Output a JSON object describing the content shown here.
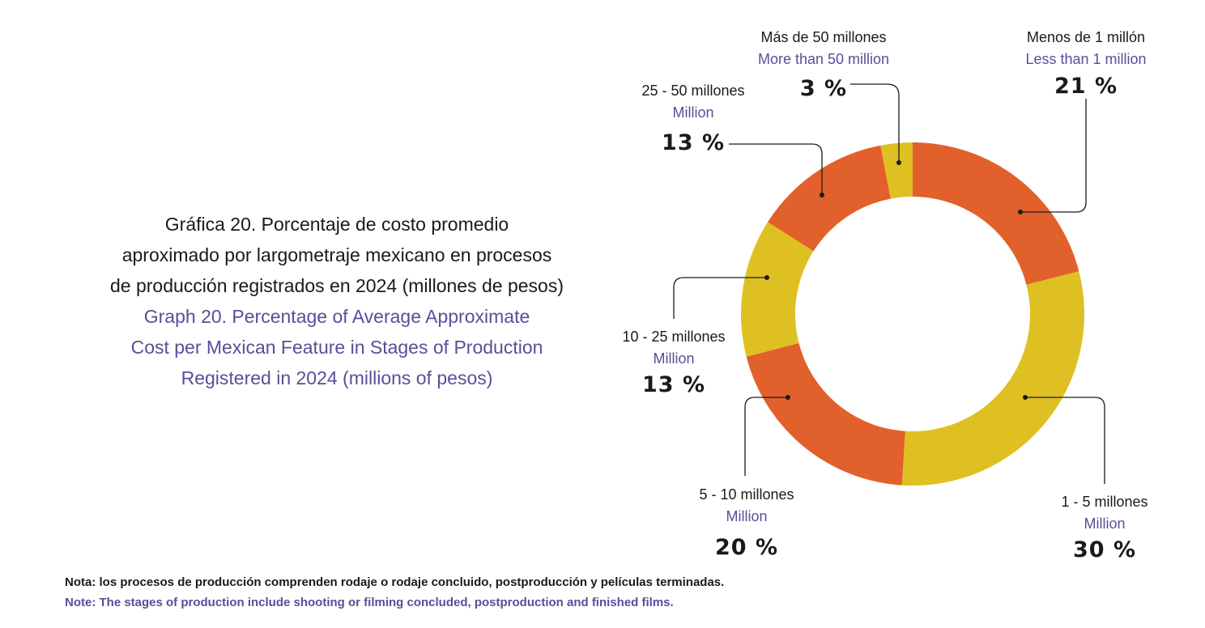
{
  "title": {
    "es_line1": "Gráfica 20. Porcentaje de costo promedio",
    "es_line2": "aproximado por largometraje mexicano en procesos",
    "es_line3": "de producción registrados en 2024 (millones de pesos)",
    "en_line1": "Graph 20. Percentage of Average Approximate",
    "en_line2": "Cost per Mexican Feature in Stages of Production",
    "en_line3": "Registered in 2024 (millions of pesos)"
  },
  "notes": {
    "es": "Nota: los procesos de producción comprenden rodaje o rodaje concluido, postproducción y películas terminadas.",
    "en": "Note: The stages of production include shooting or filming concluded, postproduction and finished films."
  },
  "colors": {
    "orange": "#e2602b",
    "yellow": "#dfc023",
    "dark": "#1a1a1a",
    "purple": "#55509a"
  },
  "chart_data": {
    "type": "pie",
    "donut": true,
    "start": "top, clockwise",
    "segments": [
      {
        "label_es": "Menos de 1 millón",
        "label_en": "Less than 1 million",
        "value": 21,
        "pct_label": "21 %",
        "color": "#e2602b"
      },
      {
        "label_es": "1 - 5 millones",
        "label_en": "Million",
        "value": 30,
        "pct_label": "30 %",
        "color": "#dfc023"
      },
      {
        "label_es": "5 - 10 millones",
        "label_en": "Million",
        "value": 20,
        "pct_label": "20 %",
        "color": "#e2602b"
      },
      {
        "label_es": "10 - 25 millones",
        "label_en": "Million",
        "value": 13,
        "pct_label": "13 %",
        "color": "#dfc023"
      },
      {
        "label_es": "25 - 50 millones",
        "label_en": "Million",
        "value": 13,
        "pct_label": "13 %",
        "color": "#e2602b"
      },
      {
        "label_es": "Más de 50 millones",
        "label_en": "More than 50 million",
        "value": 3,
        "pct_label": "3 %",
        "color": "#dfc023"
      }
    ]
  }
}
